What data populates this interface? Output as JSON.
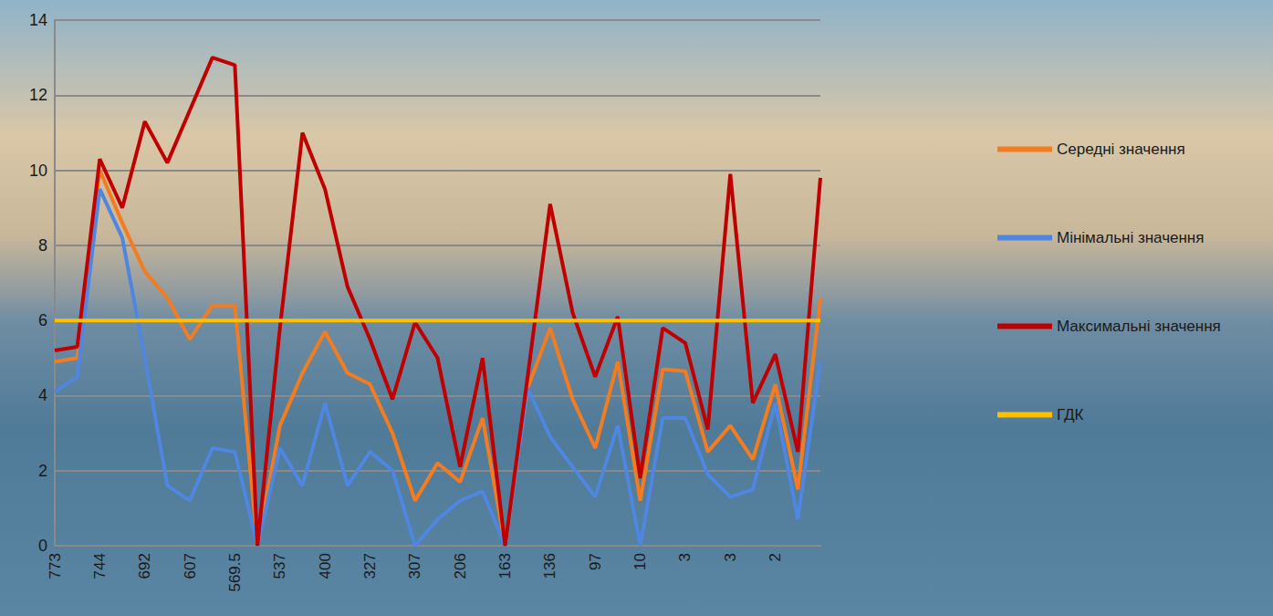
{
  "chart_data": {
    "type": "line",
    "categories": [
      "773",
      null,
      "744",
      null,
      "692",
      null,
      "607",
      null,
      "569.5",
      null,
      "537",
      null,
      "400",
      null,
      "327",
      null,
      "307",
      null,
      "206",
      null,
      "163",
      null,
      "136",
      null,
      "97",
      null,
      "10",
      null,
      "3",
      null,
      "3",
      null,
      "2",
      null,
      null
    ],
    "series": [
      {
        "name": "Середні значення",
        "color": "#f47c20",
        "values": [
          4.9,
          5.0,
          10.0,
          8.6,
          7.3,
          6.6,
          5.5,
          6.4,
          6.4,
          0,
          3.2,
          4.6,
          5.7,
          4.6,
          4.3,
          3.0,
          1.2,
          2.2,
          1.7,
          3.4,
          0,
          4.2,
          5.8,
          3.9,
          2.6,
          4.9,
          1.2,
          4.7,
          4.65,
          2.5,
          3.2,
          2.3,
          4.3,
          1.5,
          6.6
        ]
      },
      {
        "name": "Мінімальні значення",
        "color": "#4f86e0",
        "values": [
          4.1,
          4.5,
          9.5,
          8.2,
          5.0,
          1.6,
          1.2,
          2.6,
          2.5,
          0,
          2.6,
          1.6,
          3.8,
          1.6,
          2.5,
          2.0,
          0,
          0.7,
          1.2,
          1.45,
          0,
          4.2,
          2.9,
          2.1,
          1.3,
          3.2,
          0,
          3.4,
          3.4,
          1.9,
          1.3,
          1.5,
          3.8,
          0.7,
          4.9
        ]
      },
      {
        "name": "Максимальні значення",
        "color": "#c00000",
        "values": [
          5.2,
          5.3,
          10.3,
          9.0,
          11.3,
          10.2,
          11.6,
          13.0,
          12.8,
          0,
          5.8,
          11.0,
          9.5,
          6.9,
          5.5,
          3.9,
          5.95,
          5.0,
          2.1,
          5.0,
          0,
          4.5,
          9.1,
          6.2,
          4.5,
          6.1,
          1.8,
          5.8,
          5.4,
          3.1,
          9.9,
          3.8,
          5.1,
          2.5,
          9.8
        ]
      },
      {
        "name": "ГДК",
        "color": "#ffc000",
        "values": [
          6,
          6,
          6,
          6,
          6,
          6,
          6,
          6,
          6,
          6,
          6,
          6,
          6,
          6,
          6,
          6,
          6,
          6,
          6,
          6,
          6,
          6,
          6,
          6,
          6,
          6,
          6,
          6,
          6,
          6,
          6,
          6,
          6,
          6,
          6
        ]
      }
    ],
    "ylim": [
      0,
      14
    ],
    "yticks": [
      0,
      2,
      4,
      6,
      8,
      10,
      12,
      14
    ],
    "grid": true,
    "legend": "right"
  }
}
